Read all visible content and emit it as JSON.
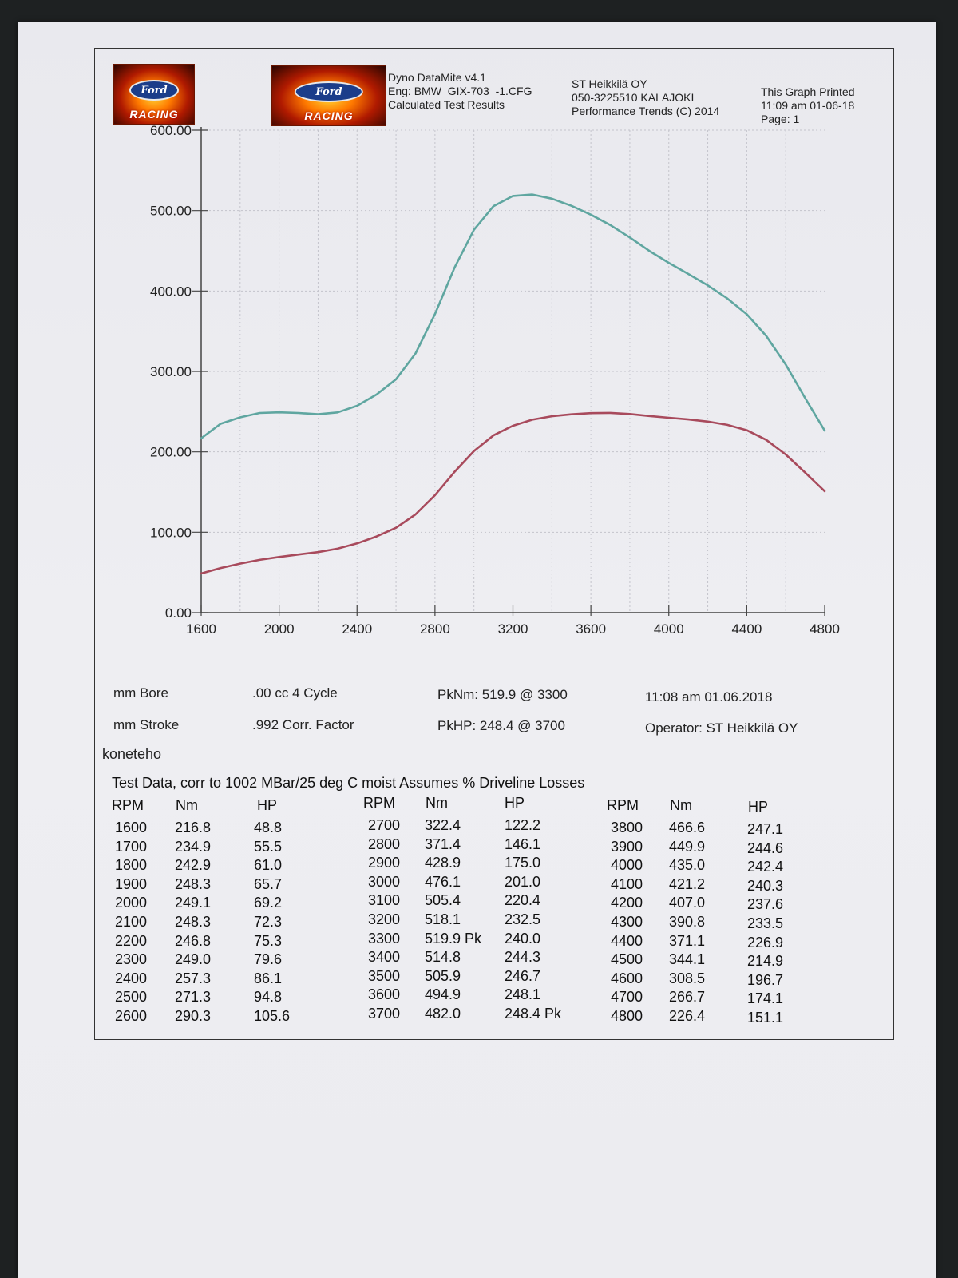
{
  "header": {
    "logo_text": "Ford",
    "logo_subtext": "RACING",
    "line1": "Dyno DataMite v4.1",
    "line2": "Eng: BMW_GIX-703_-1.CFG",
    "line3": "Calculated Test Results",
    "shop_name": "ST Heikkilä OY",
    "shop_phone": "050-3225510 KALAJOKI",
    "copyright": "Performance Trends (C) 2014",
    "printed_label": "This Graph Printed",
    "printed_time": "11:09 am 01-06-18",
    "page": "Page: 1"
  },
  "chart_data": {
    "type": "line",
    "x": [
      1600,
      1700,
      1800,
      1900,
      2000,
      2100,
      2200,
      2300,
      2400,
      2500,
      2600,
      2700,
      2800,
      2900,
      3000,
      3100,
      3200,
      3300,
      3400,
      3500,
      3600,
      3700,
      3800,
      3900,
      4000,
      4100,
      4200,
      4300,
      4400,
      4500,
      4600,
      4700,
      4800
    ],
    "series": [
      {
        "name": "Nm",
        "color": "#5fa6a0",
        "values": [
          216.8,
          234.9,
          242.9,
          248.3,
          249.1,
          248.3,
          246.8,
          249.0,
          257.3,
          271.3,
          290.3,
          322.4,
          371.4,
          428.9,
          476.1,
          505.4,
          518.1,
          519.9,
          514.8,
          505.9,
          494.9,
          482.0,
          466.6,
          449.9,
          435.0,
          421.2,
          407.0,
          390.8,
          371.1,
          344.1,
          308.5,
          266.7,
          226.4
        ]
      },
      {
        "name": "HP",
        "color": "#a84a5c",
        "values": [
          48.8,
          55.5,
          61.0,
          65.7,
          69.2,
          72.3,
          75.3,
          79.6,
          86.1,
          94.8,
          105.6,
          122.2,
          146.1,
          175.0,
          201.0,
          220.4,
          232.5,
          240.0,
          244.3,
          246.7,
          248.1,
          248.4,
          247.1,
          244.6,
          242.4,
          240.3,
          237.6,
          233.5,
          226.9,
          214.9,
          196.7,
          174.1,
          151.1
        ]
      }
    ],
    "xlim": [
      1600,
      4800
    ],
    "ylim": [
      0,
      600
    ],
    "xticks": [
      "1600",
      "2000",
      "2400",
      "2800",
      "3200",
      "3600",
      "4000",
      "4400",
      "4800"
    ],
    "yticks": [
      "0.00",
      "100.00",
      "200.00",
      "300.00",
      "400.00",
      "500.00",
      "600.00"
    ],
    "grid": true,
    "title": "",
    "xlabel": "",
    "ylabel": ""
  },
  "info": {
    "bore": "mm Bore",
    "displacement": ".00 cc  4 Cycle",
    "pk_nm": "PkNm: 519.9 @  3300",
    "date": "11:08 am  01.06.2018",
    "stroke": "mm Stroke",
    "corr_factor": ".992 Corr. Factor",
    "pk_hp": "PkHP: 248.4 @  3700",
    "operator": "Operator:  ST Heikkilä OY"
  },
  "note": "koneteho",
  "table": {
    "title": "Test Data, corr to 1002 MBar/25 deg C moist  Assumes % Driveline Losses",
    "headers": [
      "RPM",
      "Nm",
      "HP"
    ],
    "groups": [
      {
        "rpm": [
          "1600",
          "1700",
          "1800",
          "1900",
          "2000",
          "2100",
          "2200",
          "2300",
          "2400",
          "2500",
          "2600"
        ],
        "nm": [
          "216.8",
          "234.9",
          "242.9",
          "248.3",
          "249.1",
          "248.3",
          "246.8",
          "249.0",
          "257.3",
          "271.3",
          "290.3"
        ],
        "hp": [
          "48.8",
          "55.5",
          "61.0",
          "65.7",
          "69.2",
          "72.3",
          "75.3",
          "79.6",
          "86.1",
          "94.8",
          "105.6"
        ]
      },
      {
        "rpm": [
          "2700",
          "2800",
          "2900",
          "3000",
          "3100",
          "3200",
          "3300",
          "3400",
          "3500",
          "3600",
          "3700"
        ],
        "nm": [
          "322.4",
          "371.4",
          "428.9",
          "476.1",
          "505.4",
          "518.1",
          "519.9 Pk",
          "514.8",
          "505.9",
          "494.9",
          "482.0"
        ],
        "hp": [
          "122.2",
          "146.1",
          "175.0",
          "201.0",
          "220.4",
          "232.5",
          "240.0",
          "244.3",
          "246.7",
          "248.1",
          "248.4 Pk"
        ]
      },
      {
        "rpm": [
          "3800",
          "3900",
          "4000",
          "4100",
          "4200",
          "4300",
          "4400",
          "4500",
          "4600",
          "4700",
          "4800"
        ],
        "nm": [
          "466.6",
          "449.9",
          "435.0",
          "421.2",
          "407.0",
          "390.8",
          "371.1",
          "344.1",
          "308.5",
          "266.7",
          "226.4"
        ],
        "hp": [
          "247.1",
          "244.6",
          "242.4",
          "240.3",
          "237.6",
          "233.5",
          "226.9",
          "214.9",
          "196.7",
          "174.1",
          "151.1"
        ]
      }
    ]
  }
}
